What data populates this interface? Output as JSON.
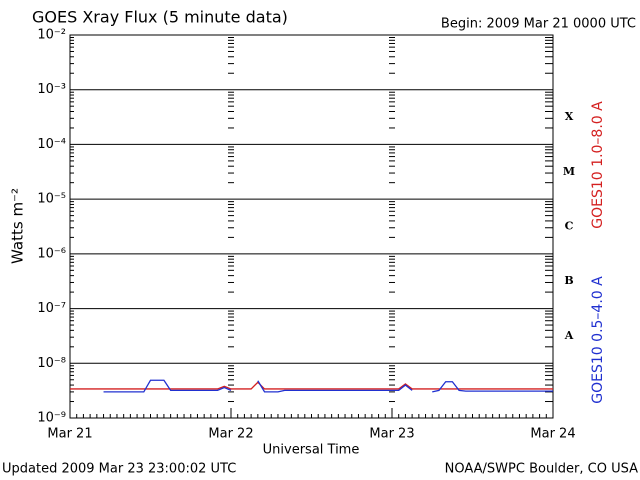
{
  "chart_data": {
    "type": "line",
    "title": "GOES Xray Flux (5 minute data)",
    "subtitle": "Begin:  2009 Mar 21 0000 UTC",
    "y_label": "Watts m⁻²",
    "x_label": "Universal Time",
    "footer_left": "Updated 2009 Mar 23 23:00:02 UTC",
    "footer_right": "NOAA/SWPC Boulder, CO USA",
    "flare_classes": [
      "X",
      "M",
      "C",
      "B",
      "A"
    ],
    "log_y": true,
    "grid": true,
    "xlim": [
      0,
      72
    ],
    "xticks": [
      {
        "value": 0,
        "label": "Mar 21"
      },
      {
        "value": 24,
        "label": "Mar 22"
      },
      {
        "value": 48,
        "label": "Mar 23"
      },
      {
        "value": 72,
        "label": "Mar 24"
      }
    ],
    "ylim": [
      1e-09,
      0.01
    ],
    "yticks": [
      {
        "value": 1e-09,
        "label": "10⁻⁹"
      },
      {
        "value": 1e-08,
        "label": "10⁻⁸"
      },
      {
        "value": 1e-07,
        "label": "10⁻⁷"
      },
      {
        "value": 1e-06,
        "label": "10⁻⁶"
      },
      {
        "value": 1e-05,
        "label": "10⁻⁵"
      },
      {
        "value": 0.0001,
        "label": "10⁻⁴"
      },
      {
        "value": 0.001,
        "label": "10⁻³"
      },
      {
        "value": 0.01,
        "label": "10⁻²"
      }
    ],
    "x": [
      0,
      1,
      2,
      3,
      4,
      5,
      6,
      7,
      8,
      9,
      10,
      11,
      12,
      13,
      14,
      15,
      16,
      17,
      18,
      19,
      20,
      21,
      22,
      23,
      24,
      25,
      26,
      27,
      28,
      29,
      30,
      31,
      32,
      33,
      34,
      35,
      36,
      37,
      38,
      39,
      40,
      41,
      42,
      43,
      44,
      45,
      46,
      47,
      48,
      49,
      50,
      51,
      52,
      53,
      54,
      55,
      56,
      57,
      58,
      59,
      60,
      61,
      62,
      63,
      64,
      65,
      66,
      67,
      68,
      69,
      70,
      71,
      72
    ],
    "series": [
      {
        "name": "GOES10 1.0–8.0 A",
        "color": "#d42020",
        "values": [
          3.4e-09,
          3.4e-09,
          3.4e-09,
          3.4e-09,
          3.4e-09,
          3.4e-09,
          3.4e-09,
          3.4e-09,
          3.4e-09,
          3.4e-09,
          3.4e-09,
          3.4e-09,
          3.4e-09,
          3.4e-09,
          3.4e-09,
          3.4e-09,
          3.4e-09,
          3.4e-09,
          3.4e-09,
          3.4e-09,
          3.4e-09,
          3.4e-09,
          3.4e-09,
          3.8e-09,
          3.4e-09,
          3.4e-09,
          3.4e-09,
          3.4e-09,
          4.5e-09,
          3.4e-09,
          3.4e-09,
          3.4e-09,
          3.4e-09,
          3.4e-09,
          3.4e-09,
          3.4e-09,
          3.4e-09,
          3.4e-09,
          3.4e-09,
          3.4e-09,
          3.4e-09,
          3.4e-09,
          3.4e-09,
          3.4e-09,
          3.4e-09,
          3.4e-09,
          3.4e-09,
          3.4e-09,
          3.4e-09,
          3.4e-09,
          4.2e-09,
          3.4e-09,
          3.4e-09,
          3.4e-09,
          3.4e-09,
          3.4e-09,
          3.4e-09,
          3.4e-09,
          3.4e-09,
          3.4e-09,
          3.4e-09,
          3.4e-09,
          3.4e-09,
          3.4e-09,
          3.4e-09,
          3.4e-09,
          3.4e-09,
          3.4e-09,
          3.4e-09,
          3.4e-09,
          3.4e-09,
          3.4e-09,
          3.4e-09
        ]
      },
      {
        "name": "GOES10 0.5–4.0 A",
        "color": "#2030d0",
        "values": [
          null,
          null,
          null,
          null,
          null,
          3e-09,
          3e-09,
          3e-09,
          3e-09,
          3e-09,
          3e-09,
          3e-09,
          4.9e-09,
          4.9e-09,
          4.9e-09,
          3.2e-09,
          3.2e-09,
          3.2e-09,
          3.2e-09,
          3.2e-09,
          3.2e-09,
          3.2e-09,
          3.2e-09,
          3.6e-09,
          3.2e-09,
          null,
          null,
          null,
          4.8e-09,
          3e-09,
          3e-09,
          3e-09,
          3.2e-09,
          3.2e-09,
          3.2e-09,
          3.2e-09,
          3.2e-09,
          3.2e-09,
          3.2e-09,
          3.2e-09,
          3.2e-09,
          3.2e-09,
          3.2e-09,
          3.2e-09,
          3.2e-09,
          3.2e-09,
          3.2e-09,
          3.2e-09,
          3.2e-09,
          3.2e-09,
          4e-09,
          3.2e-09,
          null,
          null,
          3e-09,
          3.2e-09,
          4.6e-09,
          4.6e-09,
          3.2e-09,
          3.1e-09,
          3.1e-09,
          3.1e-09,
          3.1e-09,
          3.1e-09,
          3.1e-09,
          3.1e-09,
          3.1e-09,
          3.1e-09,
          3.1e-09,
          3.1e-09,
          3.1e-09,
          3.1e-09,
          3.1e-09
        ]
      }
    ]
  }
}
